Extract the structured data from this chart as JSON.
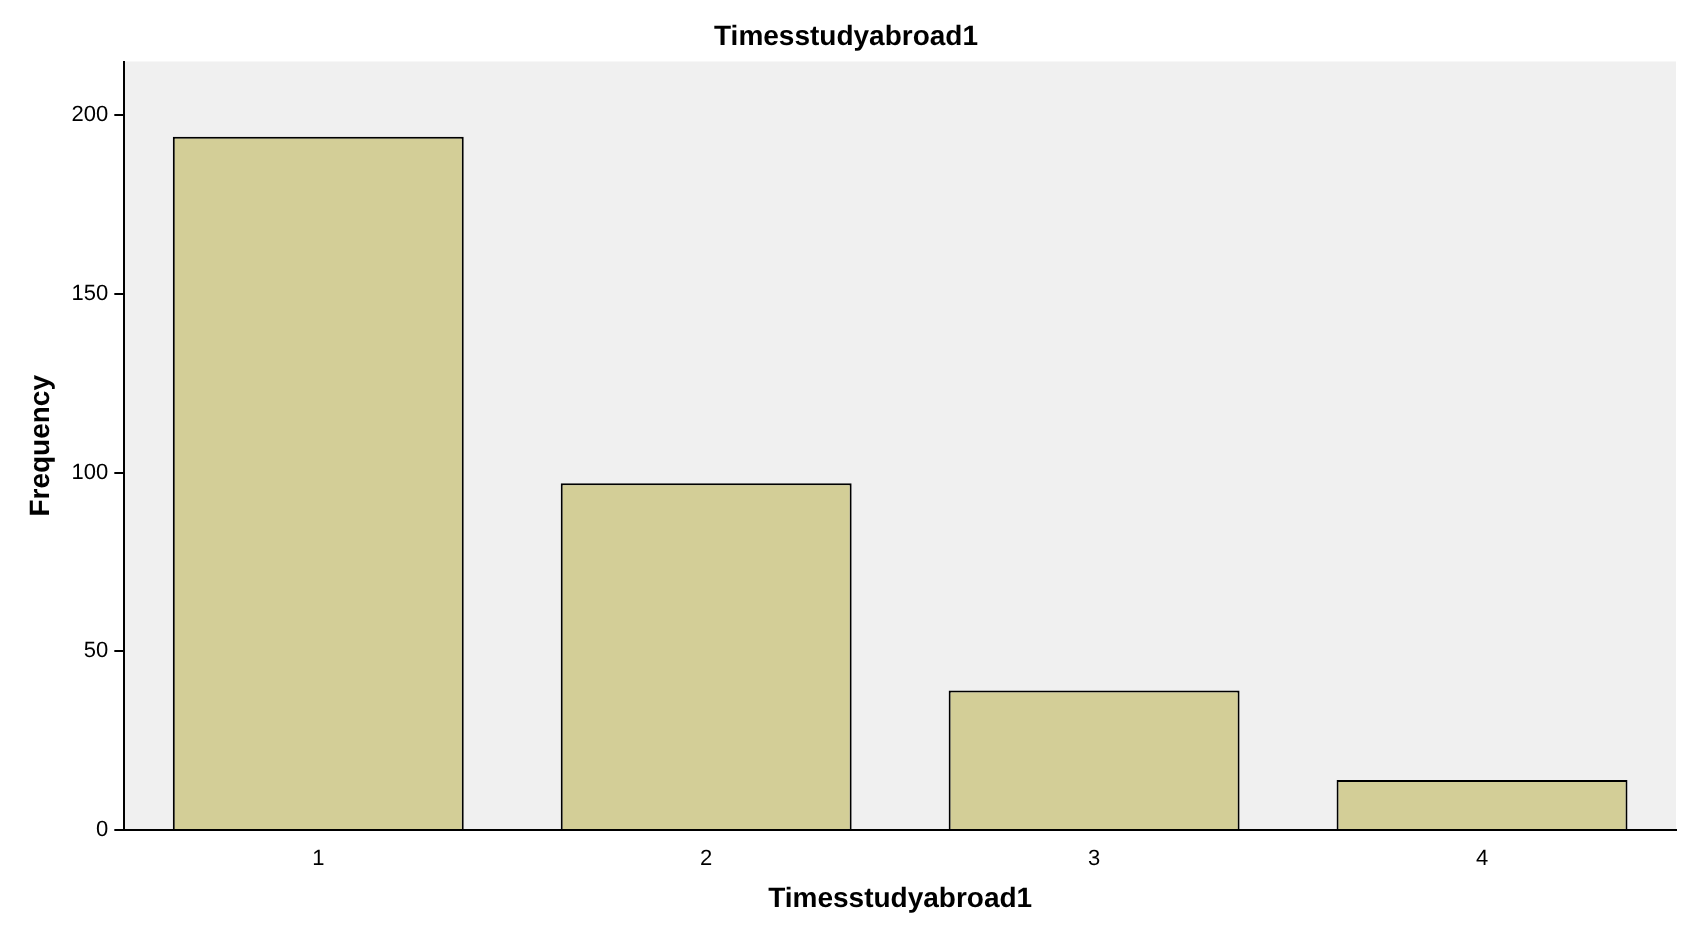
{
  "chart_data": {
    "type": "bar",
    "title": "Timesstudyabroad1",
    "xlabel": "Timesstudyabroad1",
    "ylabel": "Frequency",
    "categories": [
      "1",
      "2",
      "3",
      "4"
    ],
    "values": [
      194,
      97,
      39,
      14
    ],
    "color": "#d3ce97",
    "ylim": [
      0,
      215
    ],
    "yticks": [
      0,
      50,
      100,
      150,
      200
    ],
    "grid": false,
    "legend": false
  }
}
